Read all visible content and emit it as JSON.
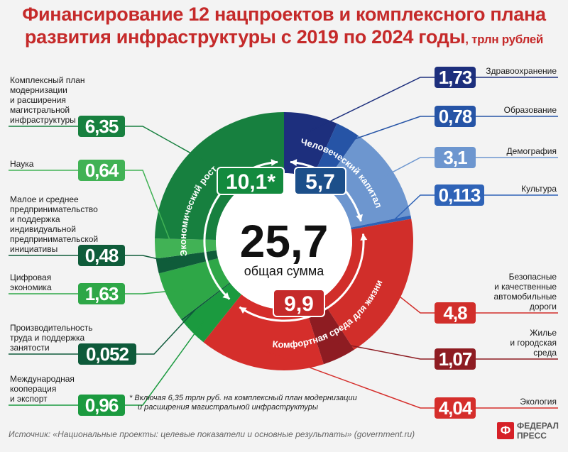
{
  "title": {
    "line1": "Финансирование 12 нацпроектов и комплексного плана",
    "line2": "развития инфраструктуры с 2019 по 2024 годы",
    "unit": ", трлн рублей"
  },
  "chart_data": {
    "type": "pie",
    "title": "Финансирование 12 нацпроектов и комплексного плана развития инфраструктуры с 2019 по 2024 годы, трлн рублей",
    "total": {
      "value": "25,7",
      "label": "общая сумма"
    },
    "groups": [
      {
        "name": "Человеческий капитал",
        "value": "5,7",
        "color": "#1c4f8a"
      },
      {
        "name": "Комфортная среда для жизни",
        "value": "9,9",
        "color": "#c52a2a"
      },
      {
        "name": "Экономический рост",
        "value": "10,1*",
        "color": "#138a3e"
      }
    ],
    "slices": [
      {
        "name": "Здравоохранение",
        "value": "1,73",
        "group": "Человеческий капитал",
        "color": "#1d2f7d"
      },
      {
        "name": "Образование",
        "value": "0,78",
        "group": "Человеческий капитал",
        "color": "#2654a6"
      },
      {
        "name": "Демография",
        "value": "3,1",
        "group": "Человеческий капитал",
        "color": "#6d96cf"
      },
      {
        "name": "Культура",
        "value": "0,113",
        "group": "Человеческий капитал",
        "color": "#2f63b7"
      },
      {
        "name": "Безопасные и качественные автомобильные дороги",
        "value": "4,8",
        "group": "Комфортная среда для жизни",
        "color": "#d12e2a"
      },
      {
        "name": "Жилье и городская среда",
        "value": "1,07",
        "group": "Комфортная среда для жизни",
        "color": "#8e1c22"
      },
      {
        "name": "Экология",
        "value": "4,04",
        "group": "Комфортная среда для жизни",
        "color": "#d52e2b"
      },
      {
        "name": "Международная кооперация и экспорт",
        "value": "0,96",
        "group": "Экономический рост",
        "color": "#1b9a3f"
      },
      {
        "name": "Производительность труда и поддержка занятости",
        "value": "0,052",
        "group": "Экономический рост",
        "color": "#0e5a3a"
      },
      {
        "name": "Цифровая экономика",
        "value": "1,63",
        "group": "Экономический рост",
        "color": "#2ea747"
      },
      {
        "name": "Малое и среднее предпринимательство и поддержка индивидуальной предпринимательской инициативы",
        "value": "0,48",
        "group": "Экономический рост",
        "color": "#0f5c3a"
      },
      {
        "name": "Наука",
        "value": "0,64",
        "group": "Экономический рост",
        "color": "#41b255"
      },
      {
        "name": "Комплексный план модернизации и расширения магистральной инфраструктуры",
        "value": "6,35",
        "group": "Экономический рост",
        "color": "#17803f"
      }
    ]
  },
  "labels": {
    "left": [
      {
        "lines": [
          "Комплексный план",
          "модернизации",
          "и расширения",
          "магистральной",
          "инфраструктуры"
        ],
        "value": "6,35"
      },
      {
        "lines": [
          "Наука"
        ],
        "value": "0,64"
      },
      {
        "lines": [
          "Малое и среднее",
          "предпринимательство",
          "и поддержка",
          "индивидуальной",
          "предпринимательской",
          "инициативы"
        ],
        "value": "0,48"
      },
      {
        "lines": [
          "Цифровая",
          "экономика"
        ],
        "value": "1,63"
      },
      {
        "lines": [
          "Производительность",
          "труда и поддержка",
          "занятости"
        ],
        "value": "0,052"
      },
      {
        "lines": [
          "Международная",
          "кооперация",
          "и экспорт"
        ],
        "value": "0,96"
      }
    ],
    "right": [
      {
        "lines": [
          "Здравоохранение"
        ],
        "value": "1,73"
      },
      {
        "lines": [
          "Образование"
        ],
        "value": "0,78"
      },
      {
        "lines": [
          "Демография"
        ],
        "value": "3,1"
      },
      {
        "lines": [
          "Культура"
        ],
        "value": "0,113"
      },
      {
        "lines": [
          "Безопасные",
          "и качественные",
          "автомобильные",
          "дороги"
        ],
        "value": "4,8"
      },
      {
        "lines": [
          "Жилье",
          "и городская",
          "среда"
        ],
        "value": "1,07"
      },
      {
        "lines": [
          "Экология"
        ],
        "value": "4,04"
      }
    ]
  },
  "footnote": {
    "line1": "*  Включая 6,35 трлн руб. на комплексный план модернизации",
    "line2": "и расширения магистральной инфраструктуры"
  },
  "source": "Источник: «Национальные проекты: целевые показатели и основные результаты» (government.ru)",
  "logo": {
    "mark": "Ф",
    "line1": "ФЕДЕРАЛ",
    "line2": "ПРЕСС"
  }
}
